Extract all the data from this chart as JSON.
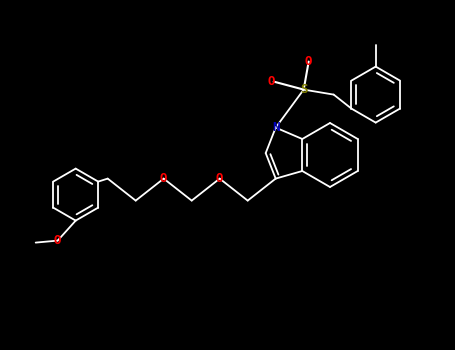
{
  "background_color": "#000000",
  "line_color": "#ffffff",
  "line_width": 1.3,
  "atom_colors": {
    "O": "#ff0000",
    "N": "#0000bb",
    "S": "#808000"
  }
}
